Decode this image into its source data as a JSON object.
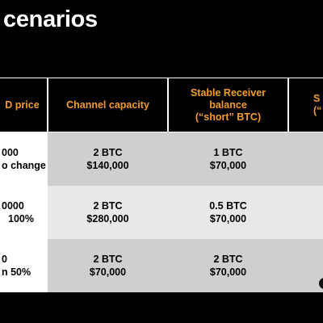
{
  "slide": {
    "title": "cenarios"
  },
  "table": {
    "headers": [
      {
        "lines": [
          "D price"
        ]
      },
      {
        "lines": [
          "Channel capacity"
        ]
      },
      {
        "lines": [
          "Stable Receiver",
          "balance",
          "(“short” BTC)"
        ]
      },
      {
        "lines": [
          "S",
          "(“"
        ]
      }
    ],
    "rows": [
      {
        "col0": [
          "000",
          "o change"
        ],
        "col1": [
          "2 BTC",
          "$140,000"
        ],
        "col2": [
          "1 BTC",
          "$70,000"
        ]
      },
      {
        "col0": [
          "0000",
          "100%"
        ],
        "col1": [
          "2 BTC",
          "$280,000"
        ],
        "col2": [
          "0.5 BTC",
          "$70,000"
        ]
      },
      {
        "col0": [
          "0",
          "n 50%"
        ],
        "col1": [
          "2 BTC",
          "$70,000"
        ],
        "col2": [
          "2 BTC",
          "$70,000"
        ]
      }
    ]
  },
  "colors": {
    "background": "#000000",
    "header_text": "#f39c2b",
    "title_text": "#ffffff",
    "row_dark": "#cfcfcf",
    "row_light": "#e8e8e8"
  }
}
